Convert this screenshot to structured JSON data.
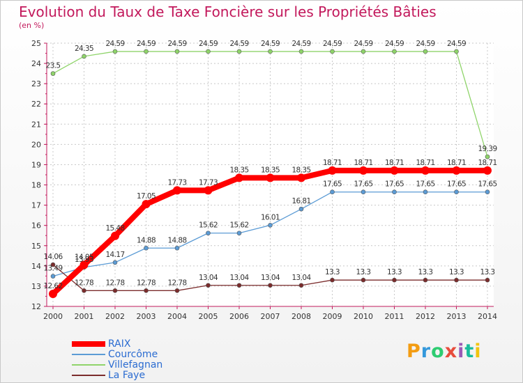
{
  "chart_data": {
    "type": "line",
    "title": "Evolution du Taux de Taxe Foncière sur les Propriétés Bâties",
    "ylabel": "(en %)",
    "xlabel": "",
    "x": [
      "2000",
      "2001",
      "2002",
      "2003",
      "2004",
      "2005",
      "2006",
      "2007",
      "2008",
      "2009",
      "2010",
      "2011",
      "2012",
      "2013",
      "2014"
    ],
    "ylim": [
      12,
      25
    ],
    "yticks": [
      "12",
      "13",
      "14",
      "15",
      "16",
      "17",
      "18",
      "19",
      "20",
      "21",
      "22",
      "23",
      "24",
      "25"
    ],
    "grid": true,
    "legend_position": "bottom-left",
    "series": [
      {
        "name": "RAIX",
        "color": "#ff0000",
        "values": [
          12.62,
          14.05,
          15.48,
          17.05,
          17.73,
          17.73,
          18.35,
          18.35,
          18.35,
          18.71,
          18.71,
          18.71,
          18.71,
          18.71,
          18.71
        ],
        "labels": [
          "12.62",
          "14.05",
          "15.48",
          "17.05",
          "17.73",
          "17.73",
          "18.35",
          "18.35",
          "18.35",
          "18.71",
          "18.71",
          "18.71",
          "18.71",
          "18.71",
          "18.71"
        ]
      },
      {
        "name": "Courcôme",
        "color": "#5b9bd5",
        "values": [
          13.49,
          13.93,
          14.17,
          14.88,
          14.88,
          15.62,
          15.62,
          16.01,
          16.81,
          17.65,
          17.65,
          17.65,
          17.65,
          17.65,
          17.65
        ],
        "labels": [
          "13.49",
          "13.93",
          "14.17",
          "14.88",
          "14.88",
          "15.62",
          "15.62",
          "16.01",
          "16.81",
          "17.65",
          "17.65",
          "17.65",
          "17.65",
          "17.65",
          "17.65"
        ]
      },
      {
        "name": "Villefagnan",
        "color": "#8fd46a",
        "values": [
          23.5,
          24.35,
          24.59,
          24.59,
          24.59,
          24.59,
          24.59,
          24.59,
          24.59,
          24.59,
          24.59,
          24.59,
          24.59,
          24.59,
          19.39
        ],
        "labels": [
          "23.5",
          "24.35",
          "24.59",
          "24.59",
          "24.59",
          "24.59",
          "24.59",
          "24.59",
          "24.59",
          "24.59",
          "24.59",
          "24.59",
          "24.59",
          "24.59",
          "19.39"
        ]
      },
      {
        "name": "La Faye",
        "color": "#7b2c2c",
        "values": [
          14.06,
          12.78,
          12.78,
          12.78,
          12.78,
          13.04,
          13.04,
          13.04,
          13.04,
          13.3,
          13.3,
          13.3,
          13.3,
          13.3,
          13.3
        ],
        "labels": [
          "14.06",
          "12.78",
          "12.78",
          "12.78",
          "12.78",
          "13.04",
          "13.04",
          "13.04",
          "13.04",
          "13.3",
          "13.3",
          "13.3",
          "13.3",
          "13.3",
          "13.3"
        ]
      }
    ]
  },
  "logo": {
    "text": "Proxiti",
    "colors": [
      "#f39c12",
      "#3498db",
      "#2ecc71",
      "#e74c3c",
      "#9b59b6",
      "#1abc9c",
      "#f1c40f"
    ]
  }
}
